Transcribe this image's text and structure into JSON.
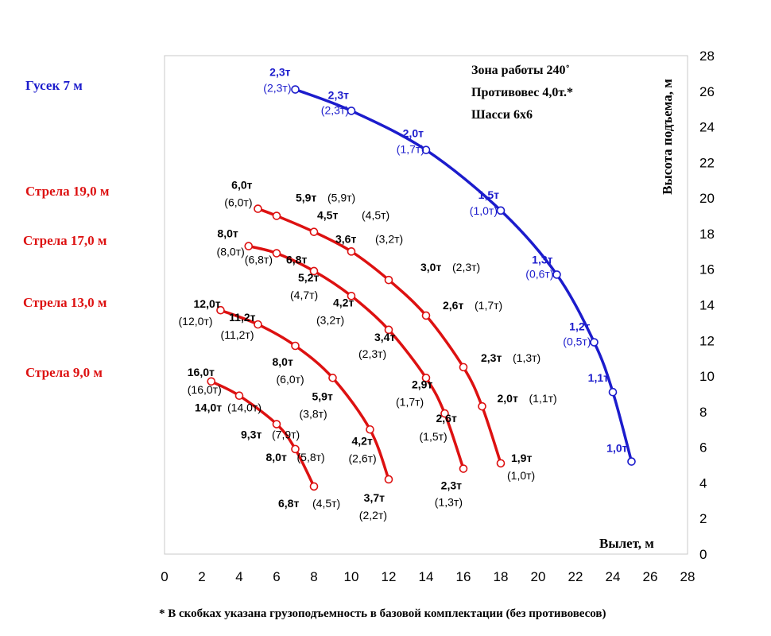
{
  "chart_data": {
    "type": "line",
    "title": "",
    "xlabel": "Вылет, м",
    "ylabel": "Высота подъема, м",
    "xlim": [
      0,
      28
    ],
    "ylim": [
      0,
      28
    ],
    "x_ticks": [
      0,
      2,
      4,
      6,
      8,
      10,
      12,
      14,
      16,
      18,
      20,
      22,
      24,
      26,
      28
    ],
    "y_ticks": [
      0,
      2,
      4,
      6,
      8,
      10,
      12,
      14,
      16,
      18,
      20,
      22,
      24,
      26,
      28
    ],
    "grid": false,
    "info": [
      "Зона работы 240˚",
      "Противовес 4,0т.*",
      "Шасси 6х6"
    ],
    "footnote": "* В скобках указана грузоподъемность в базовой комплектации (без противовесов)",
    "series": [
      {
        "name": "Гусек 7 м",
        "color": "#1c1ccc",
        "points": [
          {
            "x": 7,
            "y": 26.1,
            "load": "2,3т",
            "base": "(2,3т)"
          },
          {
            "x": 10,
            "y": 24.9,
            "load": "2,3т",
            "base": "(2,3т)"
          },
          {
            "x": 14,
            "y": 22.7,
            "load": "2,0т",
            "base": "(1,7т)"
          },
          {
            "x": 18,
            "y": 19.3,
            "load": "1,5т",
            "base": "(1,0т)"
          },
          {
            "x": 21,
            "y": 15.7,
            "load": "1,3т",
            "base": "(0,6т)"
          },
          {
            "x": 23,
            "y": 11.9,
            "load": "1,2т",
            "base": "(0,5т)"
          },
          {
            "x": 24,
            "y": 9.1,
            "load": "1,1т",
            "base": ""
          },
          {
            "x": 25,
            "y": 5.2,
            "load": "1,0т",
            "base": ""
          }
        ]
      },
      {
        "name": "Стрела 19,0 м",
        "color": "#dd1111",
        "points": [
          {
            "x": 5,
            "y": 19.4,
            "load": "6,0т",
            "base": "(6,0т)"
          },
          {
            "x": 6,
            "y": 19.0,
            "load": "5,9т",
            "base": "(5,9т)"
          },
          {
            "x": 8,
            "y": 18.1,
            "load": "4,5т",
            "base": "(4,5т)"
          },
          {
            "x": 10,
            "y": 17.0,
            "load": "3,6т",
            "base": "(3,2т)"
          },
          {
            "x": 12,
            "y": 15.4,
            "load": "3,0т",
            "base": "(2,3т)"
          },
          {
            "x": 14,
            "y": 13.4,
            "load": "2,6т",
            "base": "(1,7т)"
          },
          {
            "x": 16,
            "y": 10.5,
            "load": "2,3т",
            "base": "(1,3т)"
          },
          {
            "x": 17,
            "y": 8.3,
            "load": "2,0т",
            "base": "(1,1т)"
          },
          {
            "x": 18,
            "y": 5.1,
            "load": "1,9т",
            "base": "(1,0т)"
          }
        ]
      },
      {
        "name": "Стрела 17,0 м",
        "color": "#dd1111",
        "points": [
          {
            "x": 4.5,
            "y": 17.3,
            "load": "8,0т",
            "base": "(8,0т)"
          },
          {
            "x": 6,
            "y": 16.9,
            "load": "6,8т",
            "base": "(6,8т)"
          },
          {
            "x": 8,
            "y": 15.9,
            "load": "5,2т",
            "base": "(4,7т)"
          },
          {
            "x": 10,
            "y": 14.5,
            "load": "4,2т",
            "base": "(3,2т)"
          },
          {
            "x": 12,
            "y": 12.6,
            "load": "3,4т",
            "base": "(2,3т)"
          },
          {
            "x": 14,
            "y": 9.9,
            "load": "2,9т",
            "base": "(1,7т)"
          },
          {
            "x": 15,
            "y": 7.9,
            "load": "2,6т",
            "base": "(1,5т)"
          },
          {
            "x": 16,
            "y": 4.8,
            "load": "2,3т",
            "base": "(1,3т)"
          }
        ]
      },
      {
        "name": "Стрела 13,0 м",
        "color": "#dd1111",
        "points": [
          {
            "x": 3,
            "y": 13.7,
            "load": "12,0т",
            "base": "(12,0т)"
          },
          {
            "x": 5,
            "y": 12.9,
            "load": "11,2т",
            "base": "(11,2т)"
          },
          {
            "x": 7,
            "y": 11.7,
            "load": "8,0т",
            "base": "(6,0т)"
          },
          {
            "x": 9,
            "y": 9.9,
            "load": "5,9т",
            "base": "(3,8т)"
          },
          {
            "x": 11,
            "y": 7.0,
            "load": "4,2т",
            "base": "(2,6т)"
          },
          {
            "x": 12,
            "y": 4.2,
            "load": "3,7т",
            "base": "(2,2т)"
          }
        ]
      },
      {
        "name": "Стрела 9,0 м",
        "color": "#dd1111",
        "points": [
          {
            "x": 2.5,
            "y": 9.7,
            "load": "16,0т",
            "base": "(16,0т)"
          },
          {
            "x": 4,
            "y": 8.9,
            "load": "14,0т",
            "base": "(14,0т)"
          },
          {
            "x": 6,
            "y": 7.3,
            "load": "9,3т",
            "base": "(7,9т)"
          },
          {
            "x": 7,
            "y": 5.9,
            "load": "8,0т",
            "base": "(5,8т)"
          },
          {
            "x": 8,
            "y": 3.8,
            "load": "6,8т",
            "base": "(4,5т)"
          }
        ]
      }
    ]
  }
}
